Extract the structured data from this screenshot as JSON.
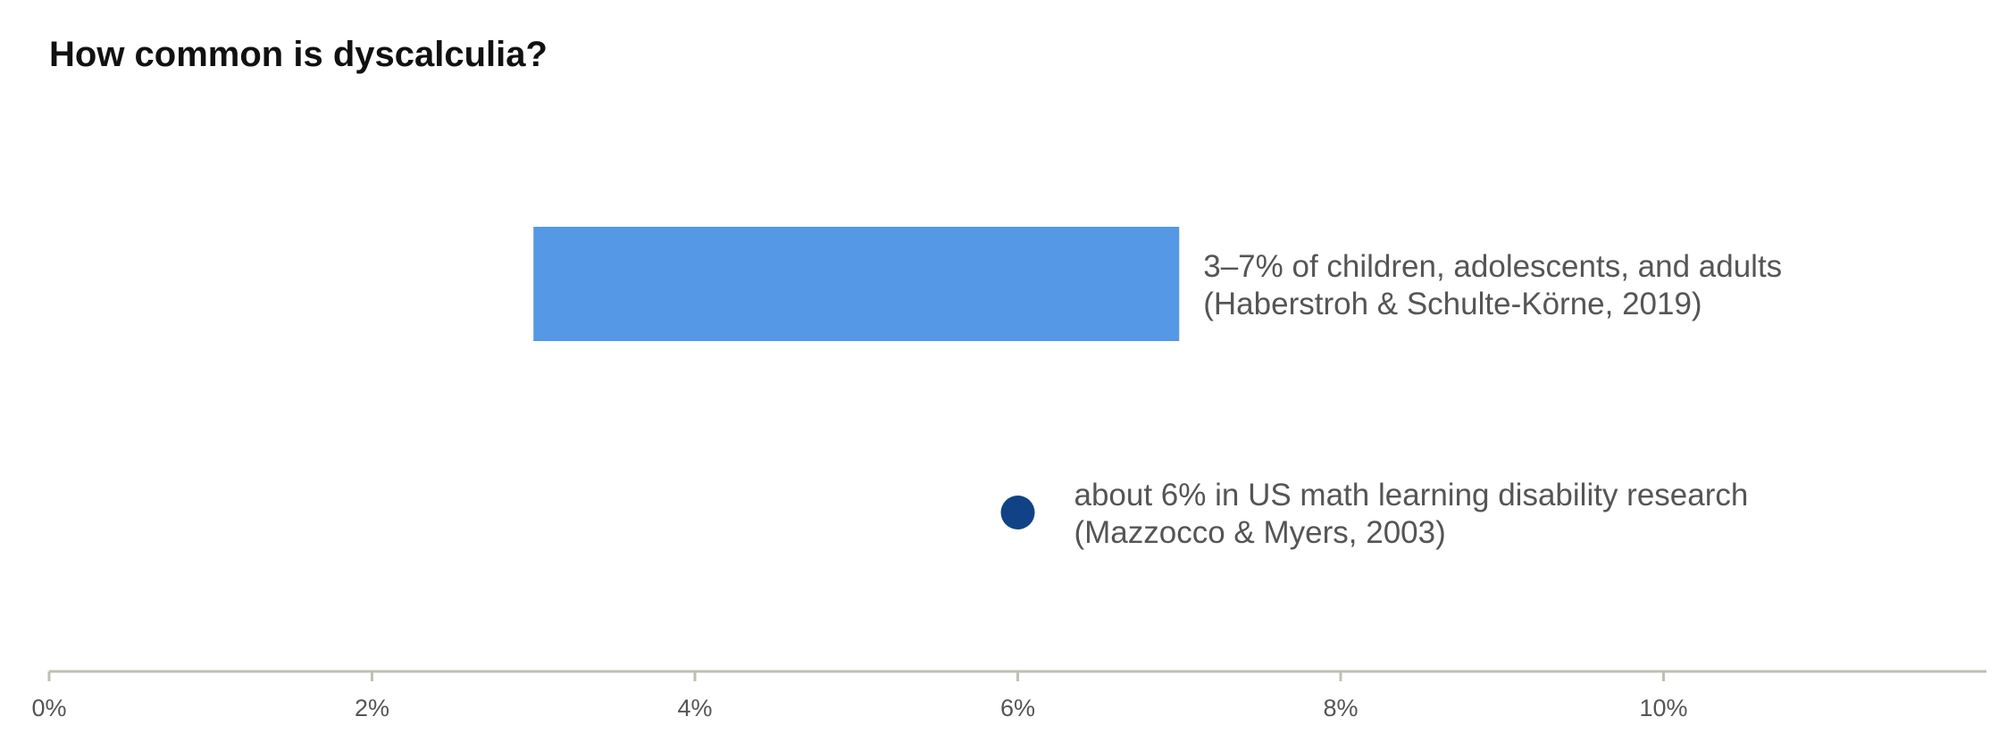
{
  "chart_data": {
    "type": "range-dot",
    "title": "How common is dyscalculia?",
    "xlim": [
      0,
      12
    ],
    "x_ticks": [
      0,
      2,
      4,
      6,
      8,
      10
    ],
    "tick_labels": [
      "0%",
      "2%",
      "4%",
      "6%",
      "8%",
      "10%"
    ],
    "ranges": [
      {
        "min": 3,
        "max": 7,
        "label_line1": "3–7% of children, adolescents, and adults",
        "label_line2": "(Haberstroh & Schulte-Körne, 2019)"
      }
    ],
    "points": [
      {
        "value": 6,
        "label_line1": "about 6% in US math learning disability research",
        "label_line2": "(Mazzocco & Myers, 2003)"
      }
    ],
    "colors": {
      "range": "#5598E6",
      "point": "#114285",
      "axis": "#BFBFB4",
      "text": "#555555",
      "title": "#111111"
    }
  }
}
